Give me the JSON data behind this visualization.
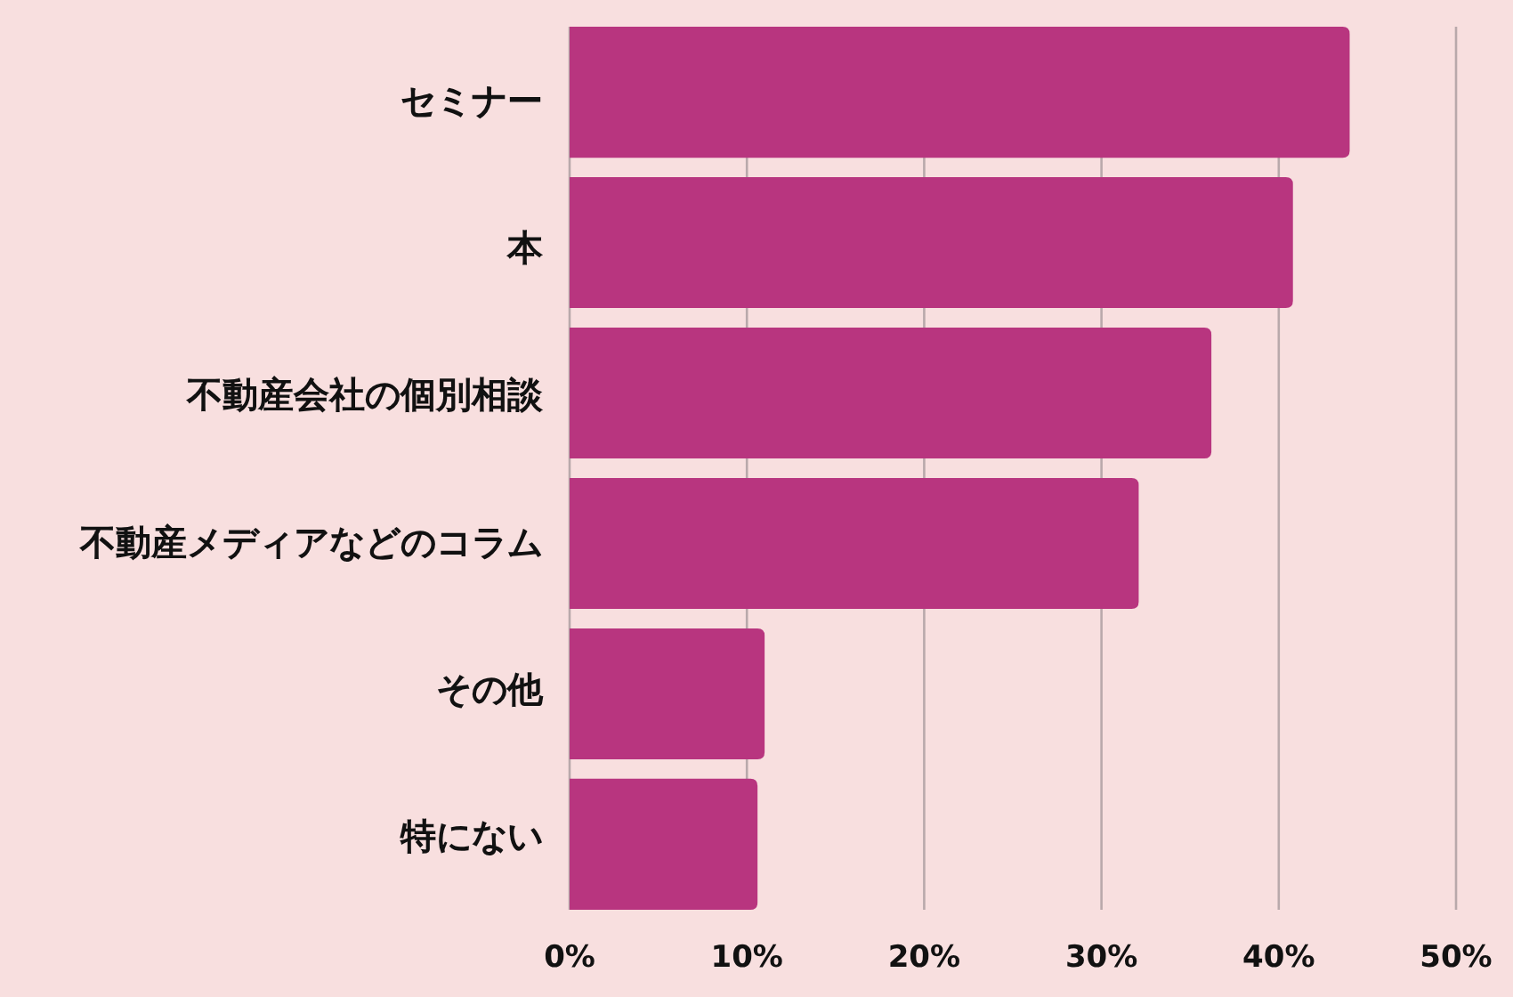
{
  "chart_data": {
    "type": "bar",
    "orientation": "horizontal",
    "categories": [
      "セミナー",
      "本",
      "不動産会社の個別相談",
      "不動産メディアなどのコラム",
      "その他",
      "特にない"
    ],
    "values": [
      44.0,
      40.8,
      36.2,
      32.1,
      11.0,
      10.6
    ],
    "color": "#b8357f",
    "xlim": [
      0,
      50
    ],
    "xticks": [
      {
        "value": 0,
        "label": "0%"
      },
      {
        "value": 10,
        "label": "10%"
      },
      {
        "value": 20,
        "label": "20%"
      },
      {
        "value": 30,
        "label": "30%"
      },
      {
        "value": 40,
        "label": "40%"
      },
      {
        "value": 50,
        "label": "50%"
      }
    ],
    "grid": "x"
  }
}
